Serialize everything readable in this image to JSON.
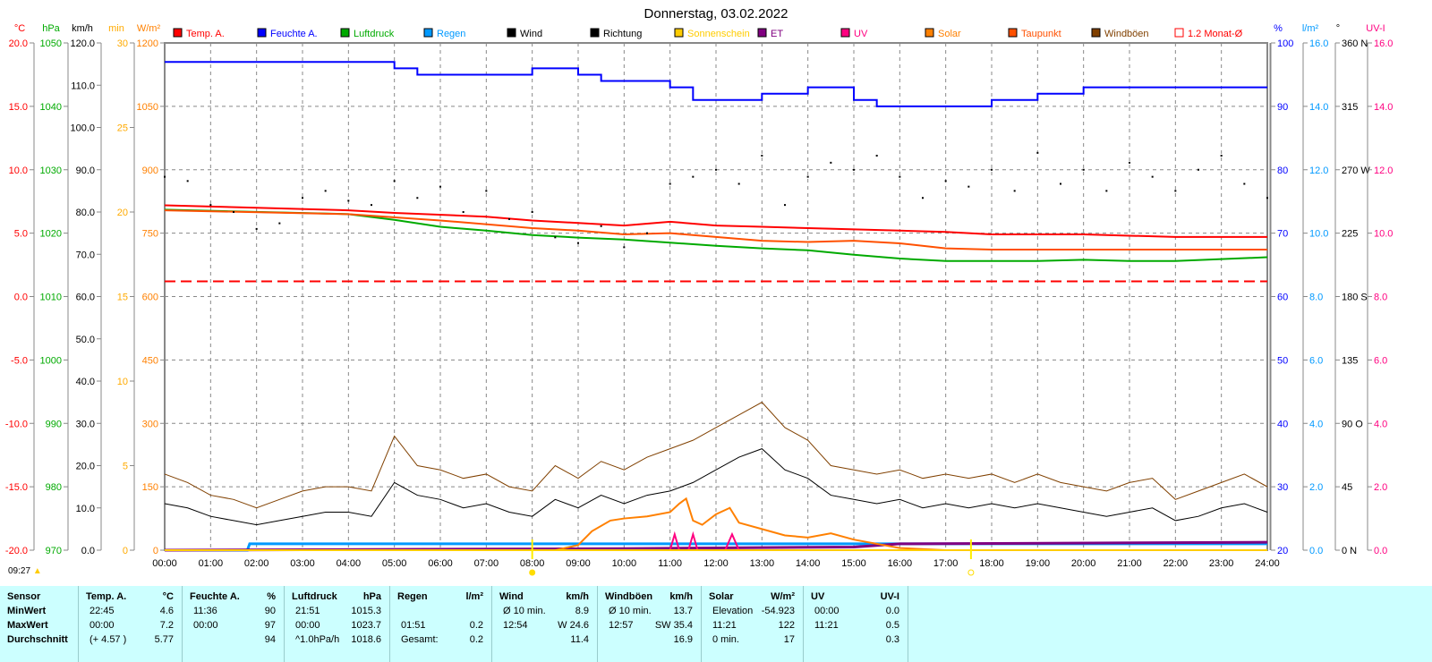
{
  "title": "Donnerstag, 03.02.2022",
  "day_length": "09:27",
  "legend": [
    {
      "label": "Temp. A.",
      "color": "#ff0000"
    },
    {
      "label": "Feuchte A.",
      "color": "#0000ff"
    },
    {
      "label": "Luftdruck",
      "color": "#00aa00"
    },
    {
      "label": "Regen",
      "color": "#0099ff"
    },
    {
      "label": "Wind",
      "color": "#000000"
    },
    {
      "label": "Richtung",
      "color": "#000000"
    },
    {
      "label": "Sonnenschein",
      "color": "#ffcc00"
    },
    {
      "label": "ET",
      "color": "#800080"
    },
    {
      "label": "UV",
      "color": "#ff0080"
    },
    {
      "label": "Solar",
      "color": "#ff8000"
    },
    {
      "label": "Taupunkt",
      "color": "#ff5000"
    },
    {
      "label": "Windböen",
      "color": "#804000"
    },
    {
      "label": "1.2 Monat-Ø",
      "color": "#ff0000"
    }
  ],
  "chart_data": {
    "type": "line",
    "title": "Donnerstag, 03.02.2022",
    "x_ticks": [
      "00:00",
      "01:00",
      "02:00",
      "03:00",
      "04:00",
      "05:00",
      "06:00",
      "07:00",
      "08:00",
      "09:00",
      "10:00",
      "11:00",
      "12:00",
      "13:00",
      "14:00",
      "15:00",
      "16:00",
      "17:00",
      "18:00",
      "19:00",
      "20:00",
      "21:00",
      "22:00",
      "23:00",
      "24:00"
    ],
    "grid": true,
    "axes": {
      "temp": {
        "unit": "°C",
        "color": "#ff0000",
        "range": [
          -20,
          20
        ],
        "ticks": [
          "20.0",
          "15.0",
          "10.0",
          "5.0",
          "0.0",
          "-5.0",
          "-10.0",
          "-15.0",
          "-20.0"
        ]
      },
      "pressure": {
        "unit": "hPa",
        "color": "#00aa00",
        "range": [
          970,
          1050
        ],
        "ticks": [
          "1050",
          "1040",
          "1030",
          "1020",
          "1010",
          "1000",
          "990",
          "980",
          "970"
        ]
      },
      "wind": {
        "unit": "km/h",
        "color": "#000000",
        "range": [
          0,
          120
        ],
        "ticks": [
          "120.0",
          "110.0",
          "100.0",
          "90.0",
          "80.0",
          "70.0",
          "60.0",
          "50.0",
          "40.0",
          "30.0",
          "20.0",
          "10.0",
          "0.0"
        ]
      },
      "sunshine": {
        "unit": "min",
        "color": "#ffaa00",
        "range": [
          0,
          30
        ],
        "ticks": [
          "30",
          "25",
          "20",
          "15",
          "10",
          "5",
          "0"
        ]
      },
      "solar": {
        "unit": "W/m²",
        "color": "#ff8000",
        "range": [
          0,
          1200
        ],
        "ticks": [
          "1200",
          "1050",
          "900",
          "750",
          "600",
          "450",
          "300",
          "150",
          "0"
        ]
      },
      "humidity": {
        "unit": "%",
        "color": "#0000ff",
        "range": [
          20,
          100
        ],
        "ticks": [
          "100",
          "90",
          "80",
          "70",
          "60",
          "50",
          "40",
          "30",
          "20"
        ]
      },
      "rain": {
        "unit": "l/m²",
        "color": "#0099ff",
        "range": [
          0,
          16
        ],
        "ticks": [
          "16.0",
          "14.0",
          "12.0",
          "10.0",
          "8.0",
          "6.0",
          "4.0",
          "2.0",
          "0.0"
        ]
      },
      "direction": {
        "unit": "°",
        "color": "#000000",
        "range": [
          0,
          360
        ],
        "ticks": [
          "360 N",
          "315",
          "270 W",
          "225",
          "180 S",
          "135",
          "90 O",
          "45",
          "0 N"
        ]
      },
      "uv": {
        "unit": "UV-I",
        "color": "#ff0080",
        "range": [
          0,
          16
        ],
        "ticks": [
          "16.0",
          "14.0",
          "12.0",
          "10.0",
          "8.0",
          "6.0",
          "4.0",
          "2.0",
          "0.0"
        ]
      }
    },
    "series": [
      {
        "name": "Temp. A.",
        "axis": "temp",
        "color": "#ff0000",
        "x": [
          0,
          2,
          4,
          5,
          7,
          8,
          9,
          10,
          11,
          12,
          13,
          14,
          15,
          16,
          17,
          18,
          20,
          21,
          22,
          24
        ],
        "y": [
          7.2,
          7.0,
          6.8,
          6.6,
          6.3,
          6.0,
          5.8,
          5.6,
          5.9,
          5.6,
          5.5,
          5.4,
          5.3,
          5.2,
          5.1,
          4.9,
          4.9,
          4.8,
          4.7,
          4.7
        ]
      },
      {
        "name": "Feuchte A.",
        "axis": "humidity",
        "step": true,
        "color": "#0000ff",
        "x": [
          0,
          5,
          5.5,
          6,
          7,
          8,
          9,
          9.5,
          11,
          11.5,
          12,
          13,
          14,
          15,
          15.5,
          17.5,
          18,
          19,
          20,
          24
        ],
        "y": [
          97,
          96,
          95,
          95,
          95,
          96,
          95,
          94,
          93,
          91,
          91,
          92,
          93,
          91,
          90,
          90,
          91,
          92,
          93,
          93
        ]
      },
      {
        "name": "Luftdruck",
        "axis": "pressure",
        "color": "#00aa00",
        "x": [
          0,
          4,
          5,
          6,
          7,
          8,
          9,
          10,
          11,
          12,
          13,
          14,
          15,
          16,
          17,
          18,
          19,
          20,
          21,
          22,
          23,
          24
        ],
        "y": [
          1023.7,
          1023.0,
          1022.1,
          1021.0,
          1020.4,
          1019.7,
          1019.3,
          1019.0,
          1018.5,
          1018.0,
          1017.6,
          1017.3,
          1016.6,
          1016.0,
          1015.6,
          1015.6,
          1015.6,
          1015.8,
          1015.6,
          1015.6,
          1015.9,
          1016.2
        ]
      },
      {
        "name": "Taupunkt",
        "axis": "temp",
        "color": "#ff5000",
        "x": [
          0,
          4,
          6,
          8,
          9,
          10,
          11,
          12,
          13,
          14,
          15,
          16,
          17,
          18,
          20,
          22,
          24
        ],
        "y": [
          6.8,
          6.5,
          6.0,
          5.4,
          5.2,
          4.9,
          5.0,
          4.7,
          4.4,
          4.3,
          4.4,
          4.2,
          3.8,
          3.7,
          3.7,
          3.7,
          3.7
        ]
      },
      {
        "name": "Regen",
        "axis": "rain",
        "color": "#0099ff",
        "width": 3,
        "x": [
          0,
          1.8,
          1.85,
          24
        ],
        "y": [
          0,
          0,
          0.2,
          0.2
        ]
      },
      {
        "name": "ET",
        "axis": "rain",
        "color": "#800080",
        "width": 3,
        "x": [
          0,
          10,
          15,
          16,
          24
        ],
        "y": [
          0,
          0.05,
          0.1,
          0.2,
          0.25
        ]
      },
      {
        "name": "UV",
        "axis": "uv",
        "color": "#ff0080",
        "x": [
          0,
          11.0,
          11.1,
          11.2,
          11.4,
          11.5,
          11.6,
          12.2,
          12.35,
          12.5,
          24
        ],
        "y": [
          0,
          0,
          0.5,
          0,
          0,
          0.5,
          0,
          0,
          0.5,
          0,
          0
        ]
      },
      {
        "name": "Solar",
        "axis": "solar",
        "color": "#ff8000",
        "x": [
          0,
          8.5,
          9.0,
          9.3,
          9.7,
          10,
          10.5,
          11,
          11.2,
          11.35,
          11.5,
          11.7,
          12.0,
          12.3,
          12.5,
          13,
          13.5,
          14,
          14.5,
          15,
          16,
          17,
          24
        ],
        "y": [
          0,
          0,
          12,
          45,
          70,
          75,
          80,
          90,
          110,
          122,
          70,
          60,
          85,
          100,
          65,
          50,
          35,
          30,
          40,
          25,
          5,
          0,
          0
        ]
      },
      {
        "name": "Wind",
        "axis": "wind",
        "color": "#000000",
        "step_hours": 0.5,
        "y": [
          11,
          10,
          8,
          7,
          6,
          7,
          8,
          9,
          9,
          8,
          16,
          13,
          12,
          10,
          11,
          9,
          8,
          12,
          10,
          13,
          11,
          13,
          14,
          16,
          19,
          22,
          24,
          19,
          17,
          13,
          12,
          11,
          12,
          10,
          11,
          10,
          11,
          10,
          11,
          10,
          9,
          8,
          9,
          10,
          7,
          8,
          10,
          11,
          9
        ]
      },
      {
        "name": "Windböen",
        "axis": "wind",
        "color": "#804000",
        "step_hours": 0.5,
        "y": [
          18,
          16,
          13,
          12,
          10,
          12,
          14,
          15,
          15,
          14,
          27,
          20,
          19,
          17,
          18,
          15,
          14,
          20,
          17,
          21,
          19,
          22,
          24,
          26,
          29,
          32,
          35,
          29,
          26,
          20,
          19,
          18,
          19,
          17,
          18,
          17,
          18,
          16,
          18,
          16,
          15,
          14,
          16,
          17,
          12,
          14,
          16,
          18,
          15
        ]
      },
      {
        "name": "Sonnenschein",
        "axis": "sunshine",
        "color": "#ffcc00",
        "x": [
          0,
          24
        ],
        "y": [
          0,
          0
        ]
      }
    ],
    "direction_dots": {
      "name": "Richtung",
      "axis": "direction",
      "step_hours": 0.5,
      "y": [
        265,
        262,
        245,
        240,
        228,
        232,
        250,
        255,
        248,
        245,
        262,
        250,
        258,
        240,
        255,
        235,
        240,
        222,
        218,
        230,
        215,
        225,
        260,
        265,
        270,
        260,
        280,
        245,
        265,
        275,
        270,
        280,
        265,
        250,
        262,
        258,
        270,
        255,
        282,
        260,
        270,
        255,
        275,
        265,
        255,
        270,
        280,
        260,
        250
      ]
    },
    "reference_line": {
      "name": "1.2 Monat-Ø",
      "axis": "temp",
      "value": 1.2,
      "color": "#ff0000"
    },
    "sun_markers": {
      "sunrise_hour": 8.0,
      "sunset_hour": 17.55
    }
  },
  "table": {
    "columns": [
      {
        "name": "Sensor",
        "unit": "",
        "rows": [
          [
            "MinWert",
            ""
          ],
          [
            "MaxWert",
            ""
          ],
          [
            "Durchschnitt",
            ""
          ]
        ]
      },
      {
        "name": "Temp. A.",
        "unit": "°C",
        "rows": [
          [
            "22:45",
            "4.6"
          ],
          [
            "00:00",
            "7.2"
          ],
          [
            "(+ 4.57 )",
            "5.77"
          ]
        ]
      },
      {
        "name": "Feuchte A.",
        "unit": "%",
        "rows": [
          [
            "11:36",
            "90"
          ],
          [
            "00:00",
            "97"
          ],
          [
            "",
            "94"
          ]
        ]
      },
      {
        "name": "Luftdruck",
        "unit": "hPa",
        "rows": [
          [
            "21:51",
            "1015.3"
          ],
          [
            "00:00",
            "1023.7"
          ],
          [
            "^1.0hPa/h",
            "1018.6"
          ]
        ]
      },
      {
        "name": "Regen",
        "unit": "l/m²",
        "rows": [
          [
            "",
            ""
          ],
          [
            "01:51",
            "0.2"
          ],
          [
            "Gesamt:",
            "0.2"
          ]
        ]
      },
      {
        "name": "Wind",
        "unit": "km/h",
        "rows": [
          [
            "Ø 10 min.",
            "8.9"
          ],
          [
            "12:54",
            "W 24.6"
          ],
          [
            "",
            "11.4"
          ]
        ]
      },
      {
        "name": "Windböen",
        "unit": "km/h",
        "rows": [
          [
            "Ø 10 min.",
            "13.7"
          ],
          [
            "12:57",
            "SW 35.4"
          ],
          [
            "",
            "16.9"
          ]
        ]
      },
      {
        "name": "Solar",
        "unit": "W/m²",
        "rows": [
          [
            "Elevation",
            "-54.923"
          ],
          [
            "11:21",
            "122"
          ],
          [
            "0 min.",
            "17"
          ]
        ]
      },
      {
        "name": "UV",
        "unit": "UV-I",
        "rows": [
          [
            "00:00",
            "0.0"
          ],
          [
            "11:21",
            "0.5"
          ],
          [
            "",
            "0.3"
          ]
        ]
      }
    ]
  }
}
